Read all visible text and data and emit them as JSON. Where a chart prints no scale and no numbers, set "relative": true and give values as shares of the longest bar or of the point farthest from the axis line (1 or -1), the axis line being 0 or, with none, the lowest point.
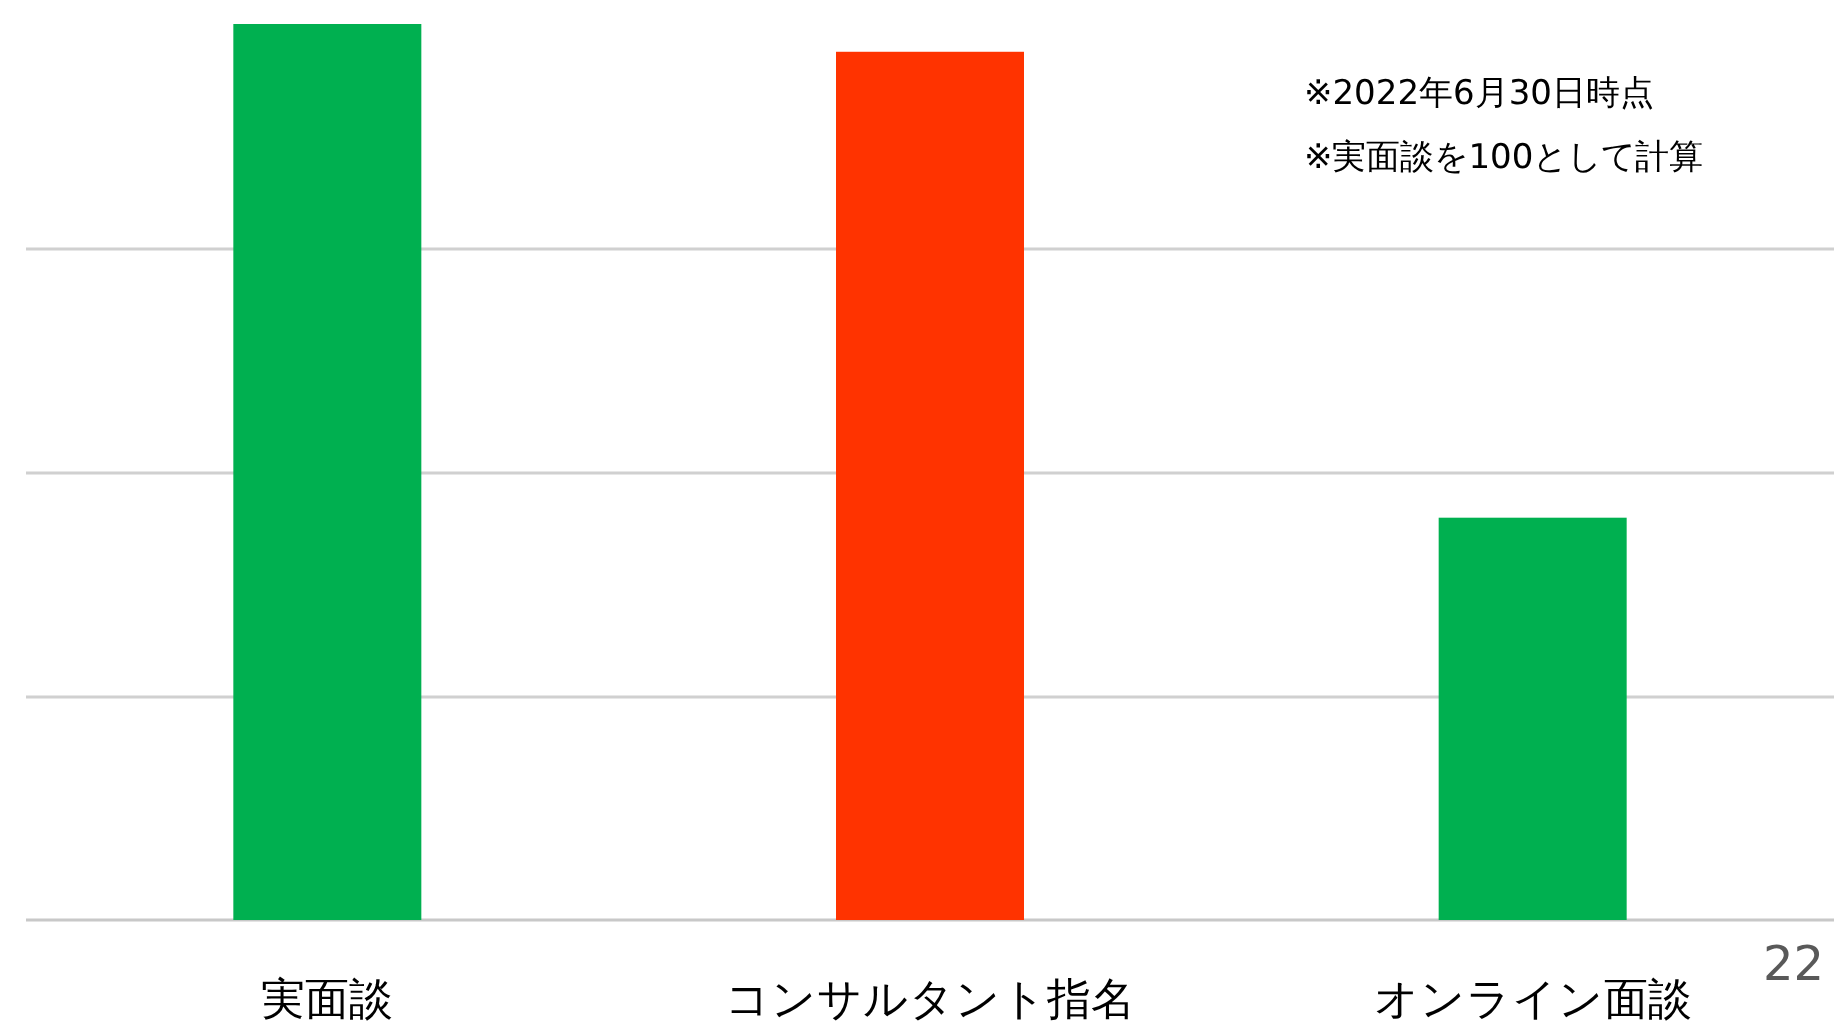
{
  "chart_data": {
    "type": "bar",
    "relative": true,
    "grid": "y",
    "categories": [
      "実面談",
      "コンサルタント指名",
      "オンライン面談"
    ],
    "values": [
      1,
      0.969,
      0.449
    ],
    "colors": [
      "#00b050",
      "#ff3300",
      "#00b050"
    ],
    "annotations": [
      "※2022年6月30日時点",
      "※実面談を100として計算",
      "22"
    ]
  }
}
